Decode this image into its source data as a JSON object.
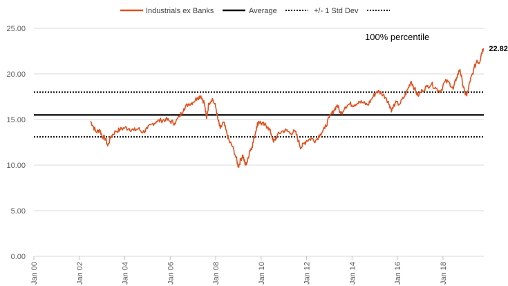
{
  "chart_data": {
    "type": "line",
    "title": "",
    "xlabel": "",
    "ylabel": "",
    "ylim": [
      0,
      25
    ],
    "y_ticks": [
      0,
      5,
      10,
      15,
      20,
      25
    ],
    "y_tick_labels": [
      "0.00",
      "5.00",
      "10.00",
      "15.00",
      "20.00",
      "25.00"
    ],
    "x_ticks": [
      2000,
      2002,
      2004,
      2006,
      2008,
      2010,
      2012,
      2014,
      2016,
      2018
    ],
    "x_tick_labels": [
      "Jan 00",
      "Jan 02",
      "Jan 04",
      "Jan 06",
      "Jan 08",
      "Jan 10",
      "Jan 12",
      "Jan 14",
      "Jan 16",
      "Jan 18"
    ],
    "xlim": [
      2000,
      2019.8
    ],
    "grid": "horizontal",
    "legend_position": "top",
    "annotation": "100% percentile",
    "end_value_label": "22.82",
    "series": [
      {
        "name": "Industrials ex Banks",
        "color": "#E0501E",
        "style": "solid",
        "points": [
          [
            2002.5,
            14.8
          ],
          [
            2002.6,
            14.3
          ],
          [
            2002.75,
            13.6
          ],
          [
            2002.9,
            13.9
          ],
          [
            2003.0,
            13.2
          ],
          [
            2003.15,
            12.9
          ],
          [
            2003.25,
            12.1
          ],
          [
            2003.4,
            13.2
          ],
          [
            2003.6,
            13.7
          ],
          [
            2003.8,
            13.9
          ],
          [
            2004.0,
            14.1
          ],
          [
            2004.2,
            14.0
          ],
          [
            2004.4,
            13.8
          ],
          [
            2004.6,
            14.0
          ],
          [
            2004.8,
            13.6
          ],
          [
            2005.0,
            14.0
          ],
          [
            2005.2,
            14.5
          ],
          [
            2005.4,
            14.8
          ],
          [
            2005.6,
            14.9
          ],
          [
            2005.8,
            15.0
          ],
          [
            2006.0,
            14.8
          ],
          [
            2006.2,
            14.6
          ],
          [
            2006.4,
            15.3
          ],
          [
            2006.6,
            16.2
          ],
          [
            2006.8,
            16.7
          ],
          [
            2007.0,
            16.9
          ],
          [
            2007.2,
            17.4
          ],
          [
            2007.35,
            17.6
          ],
          [
            2007.5,
            16.8
          ],
          [
            2007.6,
            15.1
          ],
          [
            2007.7,
            16.8
          ],
          [
            2007.85,
            17.3
          ],
          [
            2008.0,
            16.4
          ],
          [
            2008.1,
            15.0
          ],
          [
            2008.2,
            14.0
          ],
          [
            2008.35,
            14.7
          ],
          [
            2008.5,
            13.4
          ],
          [
            2008.6,
            12.6
          ],
          [
            2008.75,
            12.0
          ],
          [
            2008.9,
            10.8
          ],
          [
            2009.0,
            9.8
          ],
          [
            2009.1,
            10.6
          ],
          [
            2009.2,
            11.1
          ],
          [
            2009.3,
            10.0
          ],
          [
            2009.4,
            10.4
          ],
          [
            2009.5,
            11.6
          ],
          [
            2009.6,
            12.0
          ],
          [
            2009.7,
            13.0
          ],
          [
            2009.8,
            14.2
          ],
          [
            2009.9,
            14.8
          ],
          [
            2010.0,
            14.6
          ],
          [
            2010.15,
            14.4
          ],
          [
            2010.3,
            14.2
          ],
          [
            2010.45,
            13.4
          ],
          [
            2010.55,
            12.5
          ],
          [
            2010.7,
            13.2
          ],
          [
            2010.9,
            13.7
          ],
          [
            2011.1,
            13.8
          ],
          [
            2011.3,
            13.5
          ],
          [
            2011.5,
            13.7
          ],
          [
            2011.65,
            12.6
          ],
          [
            2011.75,
            11.9
          ],
          [
            2011.9,
            12.4
          ],
          [
            2012.0,
            12.7
          ],
          [
            2012.2,
            12.9
          ],
          [
            2012.4,
            12.7
          ],
          [
            2012.6,
            13.4
          ],
          [
            2012.8,
            14.0
          ],
          [
            2013.0,
            15.2
          ],
          [
            2013.2,
            16.0
          ],
          [
            2013.35,
            16.6
          ],
          [
            2013.5,
            15.6
          ],
          [
            2013.7,
            16.4
          ],
          [
            2013.9,
            16.7
          ],
          [
            2014.1,
            16.6
          ],
          [
            2014.3,
            17.0
          ],
          [
            2014.5,
            16.8
          ],
          [
            2014.7,
            16.6
          ],
          [
            2014.9,
            17.4
          ],
          [
            2015.1,
            18.1
          ],
          [
            2015.3,
            17.9
          ],
          [
            2015.5,
            17.4
          ],
          [
            2015.65,
            16.6
          ],
          [
            2015.75,
            16.0
          ],
          [
            2015.9,
            16.8
          ],
          [
            2016.1,
            16.7
          ],
          [
            2016.3,
            17.5
          ],
          [
            2016.45,
            18.3
          ],
          [
            2016.6,
            19.2
          ],
          [
            2016.75,
            18.4
          ],
          [
            2016.9,
            17.6
          ],
          [
            2017.1,
            18.2
          ],
          [
            2017.3,
            18.6
          ],
          [
            2017.5,
            18.9
          ],
          [
            2017.7,
            18.4
          ],
          [
            2017.9,
            18.1
          ],
          [
            2018.1,
            19.2
          ],
          [
            2018.3,
            19.0
          ],
          [
            2018.45,
            18.3
          ],
          [
            2018.6,
            19.6
          ],
          [
            2018.75,
            20.5
          ],
          [
            2018.85,
            19.2
          ],
          [
            2018.95,
            18.0
          ],
          [
            2019.05,
            17.6
          ],
          [
            2019.2,
            19.2
          ],
          [
            2019.35,
            20.4
          ],
          [
            2019.5,
            21.5
          ],
          [
            2019.6,
            21.2
          ],
          [
            2019.7,
            22.3
          ],
          [
            2019.78,
            22.82
          ]
        ]
      },
      {
        "name": "Average",
        "color": "#000000",
        "style": "solid",
        "value": 15.5
      },
      {
        "name": "+/- 1 Std Dev",
        "color": "#000000",
        "style": "dotted",
        "value": 18.0
      },
      {
        "name": "",
        "color": "#000000",
        "style": "dotted",
        "value": 13.1
      }
    ]
  }
}
